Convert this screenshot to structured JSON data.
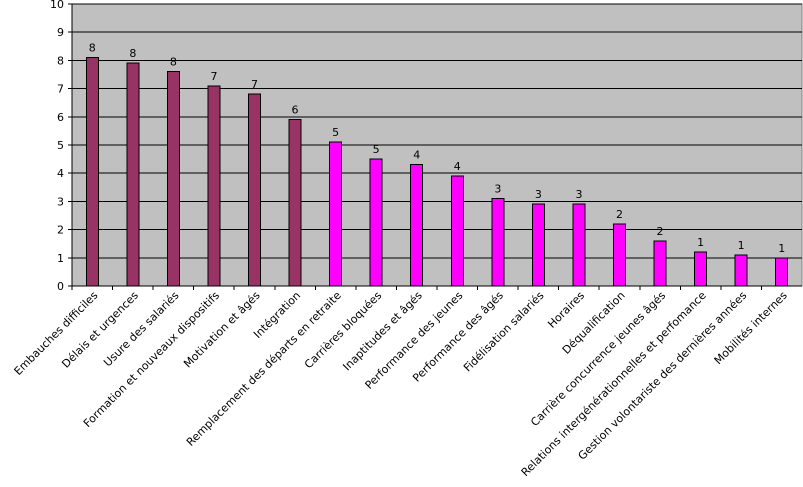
{
  "chart_data": {
    "type": "bar",
    "title": "",
    "xlabel": "",
    "ylabel": "",
    "ylim": [
      0,
      10
    ],
    "yticks": [
      0,
      1,
      2,
      3,
      4,
      5,
      6,
      7,
      8,
      9,
      10
    ],
    "grid": true,
    "legend": "none",
    "colors": {
      "plot_background": "#c0c0c0",
      "gridline": "#000000",
      "bar_group_1": "#993366",
      "bar_group_2": "#ff00ff",
      "bar_stroke": "#000000"
    },
    "categories": [
      "Embauches difficiles",
      "Délais et urgences",
      "Usure des salariés",
      "Formation et nouveaux dispositifs",
      "Motivation et âgés",
      "Intégration",
      "Remplacement des départs en retraite",
      "Carrières bloquées",
      "Inaptitudes et âgés",
      "Performance des jeunes",
      "Performance des âgés",
      "Fidélisation salariés",
      "Horaires",
      "Déqualification",
      "Carrière concurrence jeunes âgés",
      "Relations intergénérationnelles et perfomance",
      "Gestion volontariste des dernières années",
      "Mobilités internes"
    ],
    "values": [
      8.1,
      7.9,
      7.6,
      7.1,
      6.8,
      5.9,
      5.1,
      4.5,
      4.3,
      3.9,
      3.1,
      2.9,
      2.9,
      2.2,
      1.6,
      1.2,
      1.1,
      1.0
    ],
    "data_labels": [
      "8",
      "8",
      "8",
      "7",
      "7",
      "6",
      "5",
      "5",
      "4",
      "4",
      "3",
      "3",
      "3",
      "2",
      "2",
      "1",
      "1",
      "1"
    ],
    "color_group": [
      1,
      1,
      1,
      1,
      1,
      1,
      2,
      2,
      2,
      2,
      2,
      2,
      2,
      2,
      2,
      2,
      2,
      2
    ]
  }
}
